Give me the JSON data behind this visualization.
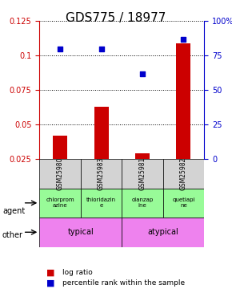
{
  "title": "GDS775 / 18977",
  "samples": [
    "GSM25980",
    "GSM25983",
    "GSM25981",
    "GSM25982"
  ],
  "log_ratio": [
    0.042,
    0.063,
    0.029,
    0.109
  ],
  "percentile_rank": [
    0.795,
    0.795,
    0.615,
    0.865
  ],
  "percentile_rank_pct": [
    79.5,
    79.5,
    61.5,
    86.5
  ],
  "bar_color": "#cc0000",
  "dot_color": "#0000cc",
  "ylim_left": [
    0.025,
    0.125
  ],
  "ylim_right": [
    0,
    100
  ],
  "yticks_left": [
    0.025,
    0.05,
    0.075,
    0.1,
    0.125
  ],
  "ytick_labels_left": [
    "0.025",
    "0.05",
    "0.075",
    "0.1",
    "0.125"
  ],
  "yticks_right": [
    0,
    25,
    50,
    75,
    100
  ],
  "ytick_labels_right": [
    "0",
    "25",
    "50",
    "75",
    "100%"
  ],
  "agent_labels": [
    "chlorprom\nazine",
    "thioridazin\ne",
    "olanzap\nine",
    "quetiapi\nne"
  ],
  "agent_colors": [
    "#90ee90",
    "#90ee90",
    "#90ee90",
    "#90ee90"
  ],
  "other_typical": "typical",
  "other_atypical": "atypical",
  "other_color": "#ee82ee",
  "grid_color": "#000000",
  "bg_color": "#ffffff",
  "title_fontsize": 11,
  "tick_fontsize": 7,
  "label_fontsize": 8
}
